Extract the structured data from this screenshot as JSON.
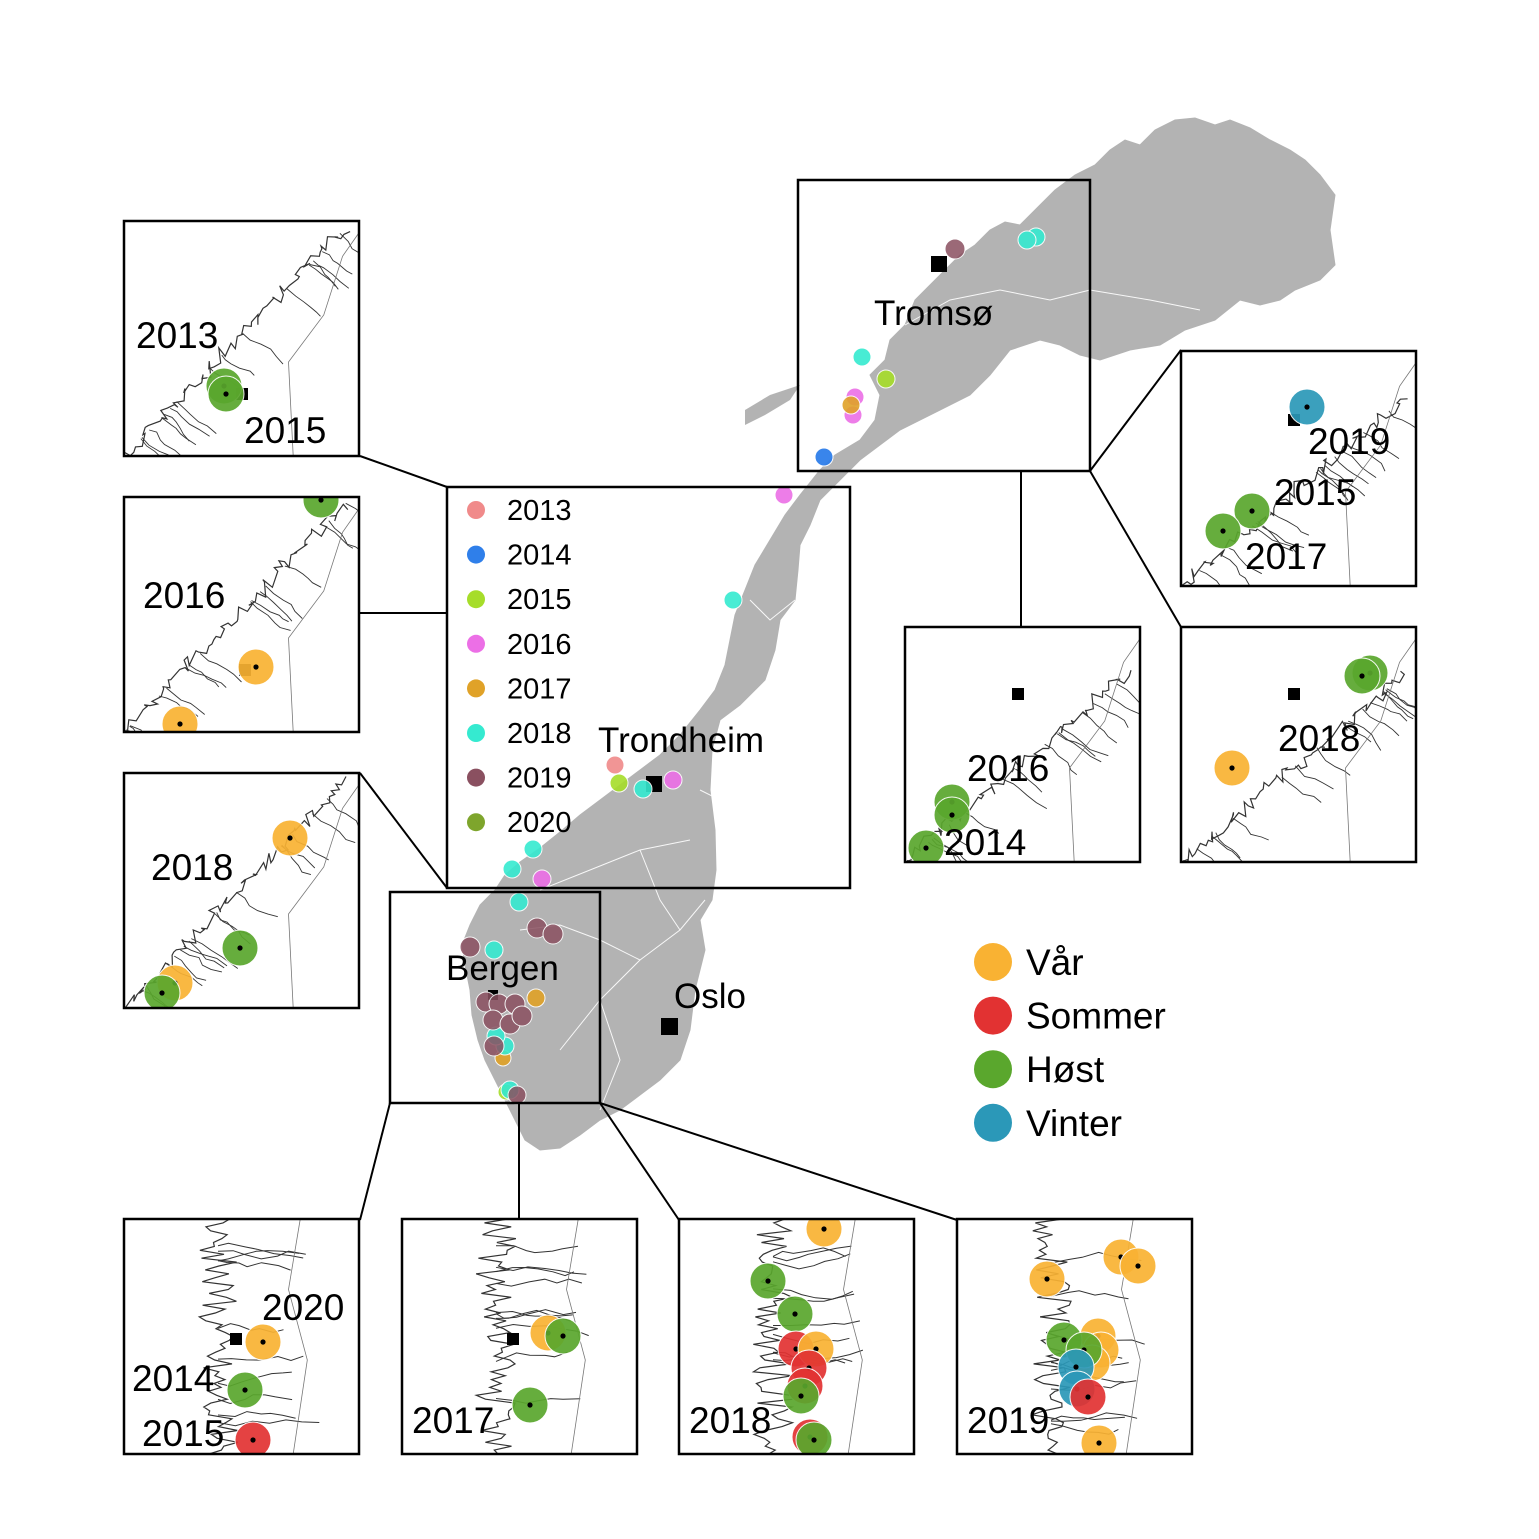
{
  "colors": {
    "land": "#b3b3b3",
    "border": "#ffffff",
    "frame": "#000000",
    "coast": "#444444",
    "city_marker": "#000000"
  },
  "cities": {
    "tromso": "Tromsø",
    "trondheim": "Trondheim",
    "bergen": "Bergen",
    "oslo": "Oslo"
  },
  "year_legend": [
    {
      "label": "2013",
      "color": "#f08a8a"
    },
    {
      "label": "2014",
      "color": "#2f7fea"
    },
    {
      "label": "2015",
      "color": "#a6dd2a"
    },
    {
      "label": "2016",
      "color": "#ec6fe6"
    },
    {
      "label": "2017",
      "color": "#e0a228"
    },
    {
      "label": "2018",
      "color": "#35ead0"
    },
    {
      "label": "2019",
      "color": "#8a5060"
    },
    {
      "label": "2020",
      "color": "#7ea52c"
    }
  ],
  "season_legend": [
    {
      "label": "Vår",
      "color": "#f9b233"
    },
    {
      "label": "Sommer",
      "color": "#e23232"
    },
    {
      "label": "Høst",
      "color": "#5aa72d"
    },
    {
      "label": "Vinter",
      "color": "#2b98b8"
    }
  ],
  "insets": {
    "mid_a": {
      "years": [
        "2013",
        "2015"
      ]
    },
    "mid_b": {
      "years": [
        "2016"
      ]
    },
    "mid_c": {
      "years": [
        "2018"
      ]
    },
    "north_a": {
      "years": [
        "2019",
        "2015",
        "2017"
      ]
    },
    "north_b": {
      "years": [
        "2018"
      ]
    },
    "north_c": {
      "years": [
        "2016",
        "2014"
      ]
    },
    "south_a": {
      "years": [
        "2020",
        "2014",
        "2015"
      ]
    },
    "south_b": {
      "years": [
        "2017"
      ]
    },
    "south_c": {
      "years": [
        "2018"
      ]
    },
    "south_d": {
      "years": [
        "2019"
      ]
    }
  }
}
